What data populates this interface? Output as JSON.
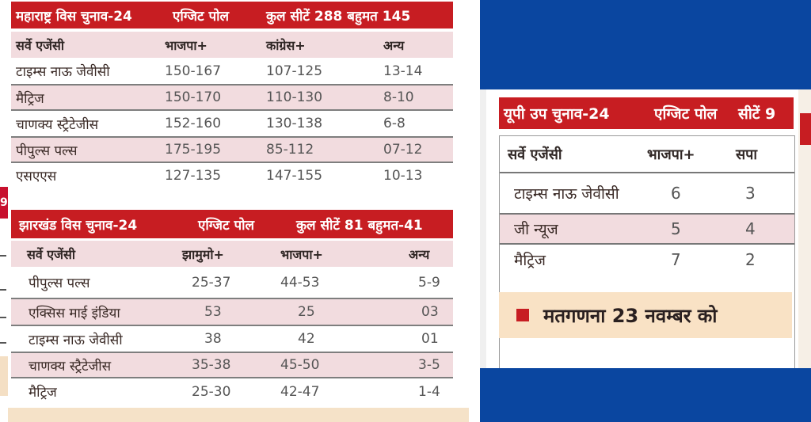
{
  "maharashtra": {
    "title": "महाराष्ट्र विस चुनाव-24",
    "label": "एग्जिट पोल",
    "summary": "कुल सीटें 288 बहुमत 145",
    "columns": [
      "सर्वे एजेंसी",
      "भाजपा+",
      "कांग्रेस+",
      "अन्य"
    ],
    "rows": [
      [
        "टाइम्स नाऊ जेवीसी",
        "150-167",
        "107-125",
        "13-14"
      ],
      [
        "मैट्रिज",
        "150-170",
        "110-130",
        "8-10"
      ],
      [
        "चाणक्य स्ट्रैटेजीस",
        "152-160",
        "130-138",
        "6-8"
      ],
      [
        "पीपुल्स पल्स",
        "175-195",
        "85-112",
        "07-12"
      ],
      [
        "एसएएस",
        "127-135",
        "147-155",
        "10-13"
      ]
    ]
  },
  "jharkhand": {
    "title": "झारखंड विस चुनाव-24",
    "label": "एग्जिट पोल",
    "summary": "कुल सीटें 81 बहुमत-41",
    "columns": [
      "सर्वे एजेंसी",
      "झामुमो+",
      "भाजपा+",
      "अन्य"
    ],
    "rows": [
      [
        "पीपुल्स पल्स",
        "25-37",
        "44-53",
        "5-9"
      ],
      [
        "एक्सिस माई इंडिया",
        "53",
        "25",
        "03"
      ],
      [
        "टाइम्स नाऊ जेवीसी",
        "38",
        "42",
        "01"
      ],
      [
        "चाणक्य स्ट्रैटेजीस",
        "35-38",
        "45-50",
        "3-5"
      ],
      [
        "मैट्रिज",
        "25-30",
        "42-47",
        "1-4"
      ]
    ]
  },
  "up": {
    "title": "यूपी उप चुनाव-24",
    "label": "एग्जिट पोल",
    "summary": "सीटें 9",
    "columns": [
      "सर्वे एजेंसी",
      "भाजपा+",
      "सपा"
    ],
    "rows": [
      [
        "टाइम्स नाऊ जेवीसी",
        "6",
        "3"
      ],
      [
        "जी न्यूज",
        "5",
        "4"
      ],
      [
        "मैट्रिज",
        "7",
        "2"
      ]
    ],
    "footer": "मतगणना 23 नवम्बर को"
  },
  "edge": {
    "badge": "9"
  },
  "colors": {
    "header": "#c71d22",
    "shade": "#f2dcdf",
    "blue": "#0a46a0",
    "footer_bg": "#f9e2c5"
  }
}
